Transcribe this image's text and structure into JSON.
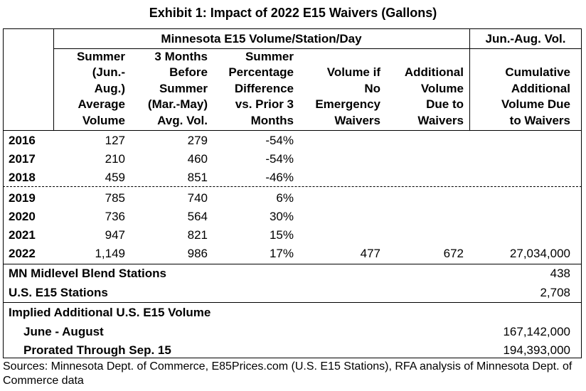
{
  "title": "Exhibit 1: Impact of 2022 E15 Waivers (Gallons)",
  "group_headers": {
    "mn": "Minnesota E15 Volume/Station/Day",
    "jun_aug": "Jun.-Aug. Vol."
  },
  "columns": [
    {
      "lines": [
        "Summer",
        "(Jun.-",
        "Aug.)",
        "Average",
        "Volume"
      ]
    },
    {
      "lines": [
        "3 Months",
        "Before",
        "Summer",
        "(Mar.-May)",
        "Avg. Vol."
      ]
    },
    {
      "lines": [
        "Summer",
        "Percentage",
        "Difference",
        "vs. Prior 3",
        "Months"
      ]
    },
    {
      "lines": [
        "Volume if",
        "No",
        "Emergency",
        "Waivers"
      ]
    },
    {
      "lines": [
        "Additional",
        "Volume",
        "Due to",
        "Waivers"
      ]
    },
    {
      "lines": [
        "Cumulative",
        "Additional",
        "Volume Due",
        "to Waivers"
      ]
    }
  ],
  "rows": [
    {
      "year": "2016",
      "summer": "127",
      "before": "279",
      "pct": "-54%",
      "vol_no": "",
      "additional": "",
      "cumulative": ""
    },
    {
      "year": "2017",
      "summer": "210",
      "before": "460",
      "pct": "-54%",
      "vol_no": "",
      "additional": "",
      "cumulative": ""
    },
    {
      "year": "2018",
      "summer": "459",
      "before": "851",
      "pct": "-46%",
      "vol_no": "",
      "additional": "",
      "cumulative": ""
    },
    {
      "year": "2019",
      "summer": "785",
      "before": "740",
      "pct": "6%",
      "vol_no": "",
      "additional": "",
      "cumulative": ""
    },
    {
      "year": "2020",
      "summer": "736",
      "before": "564",
      "pct": "30%",
      "vol_no": "",
      "additional": "",
      "cumulative": ""
    },
    {
      "year": "2021",
      "summer": "947",
      "before": "821",
      "pct": "15%",
      "vol_no": "",
      "additional": "",
      "cumulative": ""
    },
    {
      "year": "2022",
      "summer": "1,149",
      "before": "986",
      "pct": "17%",
      "vol_no": "477",
      "additional": "672",
      "cumulative": "27,034,000"
    }
  ],
  "summary": {
    "mn_midlevel_label": "MN Midlevel Blend Stations",
    "mn_midlevel_value": "438",
    "us_e15_label": "U.S. E15 Stations",
    "us_e15_value": "2,708",
    "implied_label": "Implied Additional U.S. E15 Volume",
    "june_aug_label": "June - August",
    "june_aug_value": "167,142,000",
    "prorated_label": "Prorated Through Sep. 15",
    "prorated_value": "194,393,000"
  },
  "sources": "Sources: Minnesota Dept. of Commerce, E85Prices.com (U.S. E15 Stations), RFA analysis of Minnesota Dept. of Commerce data"
}
